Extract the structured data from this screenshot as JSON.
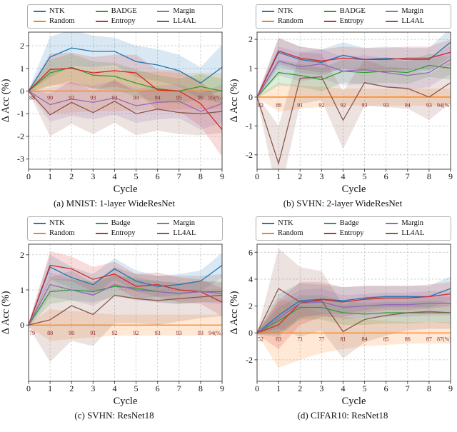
{
  "legend": {
    "columns": 3,
    "order": [
      0,
      2,
      4,
      1,
      3,
      5
    ]
  },
  "chart_data": [
    {
      "id": "a",
      "type": "line",
      "caption": "(a) MNIST: 1-layer WideResNet",
      "xlabel": "Cycle",
      "ylabel": "Δ Acc (%)",
      "x": [
        0,
        1,
        2,
        3,
        4,
        5,
        6,
        7,
        8,
        9
      ],
      "ylim": [
        -3.45,
        2.6
      ],
      "yticks": [
        -3,
        -2,
        -1,
        0,
        1,
        2
      ],
      "grid": true,
      "annotations": {
        "labels": [
          "88",
          "90",
          "92",
          "93",
          "93",
          "94",
          "94",
          "95",
          "95",
          "95(%)"
        ],
        "y": -0.38,
        "color": "#8b2828"
      },
      "series": [
        {
          "name": "NTK",
          "color": "#1f77b4",
          "values": [
            0,
            1.5,
            1.9,
            1.75,
            1.75,
            1.3,
            1.15,
            0.9,
            0.35,
            1.05
          ],
          "spread": [
            0.05,
            0.9,
            0.8,
            0.7,
            0.6,
            0.7,
            0.7,
            0.7,
            0.7,
            1.0
          ]
        },
        {
          "name": "Random",
          "color": "#ff7f0e",
          "values": [
            0,
            0,
            0,
            0,
            0,
            0,
            0,
            0,
            0,
            0
          ],
          "spread": [
            0.05,
            1.0,
            0.95,
            0.9,
            0.9,
            0.85,
            0.85,
            0.8,
            0.8,
            0.8
          ]
        },
        {
          "name": "BADGE",
          "color": "#2ca02c",
          "values": [
            0,
            0.8,
            1.05,
            0.7,
            0.65,
            0.35,
            0.1,
            0,
            0.2,
            0
          ],
          "spread": [
            0.05,
            0.6,
            0.6,
            0.6,
            0.6,
            0.6,
            0.6,
            0.55,
            0.55,
            0.55
          ]
        },
        {
          "name": "Entropy",
          "color": "#d62728",
          "values": [
            0,
            0.95,
            1.0,
            0.8,
            0.9,
            0.8,
            0.05,
            0,
            -0.55,
            -1.7
          ],
          "spread": [
            0.05,
            0.7,
            0.7,
            0.7,
            0.7,
            0.8,
            0.9,
            0.9,
            1.0,
            1.2
          ]
        },
        {
          "name": "Margin",
          "color": "#9467bd",
          "values": [
            0,
            -0.6,
            -0.35,
            -0.5,
            -0.3,
            -0.65,
            -0.5,
            -0.45,
            -0.9,
            -0.55
          ],
          "spread": [
            0.05,
            0.75,
            0.75,
            0.75,
            0.75,
            0.75,
            0.75,
            0.75,
            0.8,
            0.85
          ]
        },
        {
          "name": "LL4AL",
          "color": "#8c564b",
          "values": [
            0,
            -1.05,
            -0.5,
            -0.95,
            -0.45,
            -1.0,
            -0.8,
            -0.95,
            -1.0,
            -0.9
          ],
          "spread": [
            0.05,
            0.95,
            0.95,
            0.95,
            0.95,
            0.95,
            0.95,
            0.95,
            0.95,
            0.95
          ]
        }
      ]
    },
    {
      "id": "b",
      "type": "line",
      "caption": "(b) SVHN: 2-layer WideResNet",
      "xlabel": "Cycle",
      "ylabel": "Δ Acc (%)",
      "x": [
        0,
        1,
        2,
        3,
        4,
        5,
        6,
        7,
        8,
        9
      ],
      "ylim": [
        -2.5,
        2.25
      ],
      "yticks": [
        -2,
        -1,
        0,
        1,
        2
      ],
      "grid": true,
      "annotations": {
        "labels": [
          "82",
          "88",
          "91",
          "92",
          "92",
          "93",
          "93",
          "94",
          "93",
          "94(%)"
        ],
        "y": -0.35,
        "color": "#8b2828"
      },
      "series": [
        {
          "name": "NTK",
          "color": "#1f77b4",
          "values": [
            0,
            1.55,
            1.3,
            1.2,
            1.45,
            1.3,
            1.35,
            1.3,
            1.3,
            1.9
          ],
          "spread": [
            0.05,
            0.5,
            0.45,
            0.45,
            0.45,
            0.4,
            0.4,
            0.4,
            0.4,
            0.5
          ]
        },
        {
          "name": "Random",
          "color": "#ff7f0e",
          "values": [
            0,
            0,
            0,
            0,
            0,
            0,
            0,
            0,
            0,
            0
          ],
          "spread": [
            0.05,
            0.5,
            0.4,
            0.35,
            0.3,
            0.3,
            0.3,
            0.3,
            0.3,
            0.3
          ]
        },
        {
          "name": "BADGE",
          "color": "#2ca02c",
          "values": [
            0,
            0.85,
            0.75,
            0.6,
            0.9,
            0.85,
            0.9,
            0.85,
            1.1,
            1.0
          ],
          "spread": [
            0.05,
            0.45,
            0.4,
            0.4,
            0.4,
            0.4,
            0.4,
            0.4,
            0.4,
            0.4
          ]
        },
        {
          "name": "Entropy",
          "color": "#d62728",
          "values": [
            0,
            1.6,
            1.35,
            1.25,
            1.35,
            1.3,
            1.3,
            1.35,
            1.35,
            1.55
          ],
          "spread": [
            0.05,
            0.45,
            0.4,
            0.4,
            0.4,
            0.4,
            0.4,
            0.4,
            0.4,
            0.45
          ]
        },
        {
          "name": "Margin",
          "color": "#9467bd",
          "values": [
            0,
            1.25,
            1.05,
            1.15,
            0.9,
            0.95,
            0.85,
            0.75,
            0.85,
            1.3
          ],
          "spread": [
            0.05,
            0.5,
            0.5,
            0.5,
            0.5,
            0.5,
            0.5,
            0.5,
            0.5,
            0.5
          ]
        },
        {
          "name": "LL4AL",
          "color": "#8c564b",
          "values": [
            0,
            -2.3,
            0.65,
            0.7,
            -0.8,
            0.5,
            0.35,
            0.3,
            0,
            0.5
          ],
          "spread": [
            0.05,
            1.3,
            0.9,
            0.8,
            1.0,
            0.8,
            0.7,
            0.7,
            0.8,
            0.7
          ]
        }
      ]
    },
    {
      "id": "c",
      "type": "line",
      "caption": "(c) SVHN: ResNet18",
      "xlabel": "Cycle",
      "ylabel": "Δ Acc (%)",
      "x": [
        0,
        1,
        2,
        3,
        4,
        5,
        6,
        7,
        8,
        9
      ],
      "ylim": [
        -1.6,
        2.3
      ],
      "yticks": [
        0,
        1,
        2
      ],
      "grid": true,
      "annotations": {
        "labels": [
          "79",
          "88",
          "90",
          "91",
          "92",
          "92",
          "93",
          "93",
          "93",
          "94(%)"
        ],
        "y": -0.28,
        "color": "#8b2828"
      },
      "series": [
        {
          "name": "NTK",
          "color": "#1f77b4",
          "values": [
            0,
            1.65,
            1.35,
            1.15,
            1.6,
            1.25,
            1.1,
            1.15,
            1.25,
            1.7
          ],
          "spread": [
            0.05,
            0.35,
            0.3,
            0.3,
            0.3,
            0.3,
            0.3,
            0.3,
            0.3,
            0.35
          ]
        },
        {
          "name": "Random",
          "color": "#ff7f0e",
          "values": [
            0,
            0,
            0,
            0,
            0,
            0,
            0,
            0,
            0,
            0
          ],
          "spread": [
            0.05,
            0.45,
            0.4,
            0.35,
            0.3,
            0.3,
            0.3,
            0.3,
            0.3,
            0.3
          ]
        },
        {
          "name": "Badge",
          "color": "#2ca02c",
          "values": [
            0,
            0.95,
            1.0,
            0.95,
            1.1,
            1.05,
            0.95,
            0.9,
            0.95,
            0.95
          ],
          "spread": [
            0.05,
            0.35,
            0.3,
            0.3,
            0.3,
            0.3,
            0.3,
            0.3,
            0.3,
            0.3
          ]
        },
        {
          "name": "Entropy",
          "color": "#d62728",
          "values": [
            0,
            1.7,
            1.6,
            1.3,
            1.45,
            1.1,
            1.15,
            1.0,
            0.95,
            0.65
          ],
          "spread": [
            0.05,
            0.4,
            0.35,
            0.35,
            0.35,
            0.35,
            0.35,
            0.35,
            0.35,
            0.4
          ]
        },
        {
          "name": "Margin",
          "color": "#9467bd",
          "values": [
            0,
            1.15,
            1.0,
            0.85,
            1.15,
            1.0,
            0.95,
            0.9,
            0.95,
            0.9
          ],
          "spread": [
            0.05,
            0.35,
            0.3,
            0.3,
            0.3,
            0.3,
            0.3,
            0.3,
            0.3,
            0.3
          ]
        },
        {
          "name": "LL4AL",
          "color": "#8c564b",
          "values": [
            0,
            0.15,
            0.55,
            0.3,
            0.85,
            0.75,
            0.7,
            0.75,
            0.8,
            0.85
          ],
          "spread": [
            0.05,
            1.2,
            1.0,
            0.9,
            0.8,
            0.7,
            0.7,
            0.65,
            0.6,
            0.6
          ]
        }
      ]
    },
    {
      "id": "d",
      "type": "line",
      "caption": "(d) CIFAR10: ResNet18",
      "xlabel": "Cycle",
      "ylabel": "Δ Acc (%)",
      "x": [
        0,
        1,
        2,
        3,
        4,
        5,
        6,
        7,
        8,
        9
      ],
      "ylim": [
        -3.6,
        6.6
      ],
      "yticks": [
        -2,
        0,
        2,
        4,
        6
      ],
      "grid": true,
      "annotations": {
        "labels": [
          "52",
          "63",
          "71",
          "77",
          "81",
          "84",
          "85",
          "86",
          "87",
          "87(%)"
        ],
        "y": -0.6,
        "color": "#8b2828"
      },
      "series": [
        {
          "name": "NTK",
          "color": "#1f77b4",
          "values": [
            0,
            1.3,
            2.4,
            2.5,
            2.4,
            2.6,
            2.7,
            2.7,
            2.7,
            3.3
          ],
          "spread": [
            0.1,
            1.6,
            1.3,
            1.1,
            1.0,
            0.9,
            0.8,
            0.8,
            0.8,
            0.9
          ]
        },
        {
          "name": "Random",
          "color": "#ff7f0e",
          "values": [
            0,
            0,
            0,
            0,
            0,
            0,
            0,
            0,
            0,
            0
          ],
          "spread": [
            0.05,
            2.6,
            2.0,
            1.5,
            1.2,
            1.0,
            0.9,
            0.8,
            0.8,
            0.8
          ]
        },
        {
          "name": "Badge",
          "color": "#2ca02c",
          "values": [
            0,
            0.9,
            1.9,
            1.9,
            1.5,
            1.4,
            1.5,
            1.5,
            1.6,
            1.5
          ],
          "spread": [
            0.1,
            1.0,
            0.9,
            0.9,
            0.9,
            0.8,
            0.8,
            0.8,
            0.8,
            0.8
          ]
        },
        {
          "name": "Entropy",
          "color": "#d62728",
          "values": [
            0,
            0.6,
            2.2,
            2.5,
            2.3,
            2.5,
            2.6,
            2.6,
            2.7,
            2.9
          ],
          "spread": [
            0.1,
            1.8,
            1.6,
            1.3,
            1.1,
            1.0,
            0.9,
            0.9,
            0.9,
            0.9
          ]
        },
        {
          "name": "Margin",
          "color": "#9467bd",
          "values": [
            0,
            1.1,
            2.2,
            2.3,
            1.9,
            2.0,
            2.1,
            2.1,
            2.2,
            2.2
          ],
          "spread": [
            0.1,
            1.1,
            1.0,
            1.0,
            0.9,
            0.9,
            0.9,
            0.9,
            0.9,
            0.9
          ]
        },
        {
          "name": "LL4AL",
          "color": "#8c564b",
          "values": [
            0,
            3.3,
            2.3,
            2.4,
            0.1,
            1.0,
            1.3,
            1.5,
            1.5,
            1.5
          ],
          "spread": [
            0.1,
            3.0,
            2.6,
            2.2,
            2.0,
            1.7,
            1.5,
            1.3,
            1.2,
            1.2
          ]
        }
      ]
    }
  ]
}
